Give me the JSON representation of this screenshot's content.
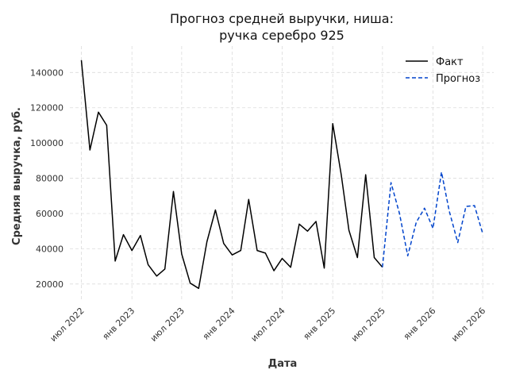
{
  "chart_data": {
    "type": "line",
    "title": [
      "Прогноз средней выручки, ниша:",
      "ручка серебро 925"
    ],
    "xlabel": "Дата",
    "ylabel": "Средняя выручка, руб.",
    "ylim": [
      10000,
      155000
    ],
    "yticks": [
      20000,
      40000,
      60000,
      80000,
      100000,
      120000,
      140000
    ],
    "x_range": [
      "2022-05-20",
      "2026-08-10"
    ],
    "xticks": [
      {
        "date": "2022-07-01",
        "label": "июл 2022"
      },
      {
        "date": "2023-01-01",
        "label": "янв 2023"
      },
      {
        "date": "2023-07-01",
        "label": "июл 2023"
      },
      {
        "date": "2024-01-01",
        "label": "янв 2024"
      },
      {
        "date": "2024-07-01",
        "label": "июл 2024"
      },
      {
        "date": "2025-01-01",
        "label": "янв 2025"
      },
      {
        "date": "2025-07-01",
        "label": "июл 2025"
      },
      {
        "date": "2026-01-01",
        "label": "янв 2026"
      },
      {
        "date": "2026-07-01",
        "label": "июл 2026"
      }
    ],
    "grid": true,
    "legend_position": "top-right",
    "series": [
      {
        "name": "Факт",
        "color": "#000000",
        "style": "solid",
        "x": [
          "2022-07-01",
          "2022-08-01",
          "2022-09-01",
          "2022-10-01",
          "2022-11-01",
          "2022-12-01",
          "2023-01-01",
          "2023-02-01",
          "2023-03-01",
          "2023-04-01",
          "2023-05-01",
          "2023-06-01",
          "2023-07-01",
          "2023-08-01",
          "2023-09-01",
          "2023-10-01",
          "2023-11-01",
          "2023-12-01",
          "2024-01-01",
          "2024-02-01",
          "2024-03-01",
          "2024-04-01",
          "2024-05-01",
          "2024-06-01",
          "2024-07-01",
          "2024-08-01",
          "2024-09-01",
          "2024-10-01",
          "2024-11-01",
          "2024-12-01",
          "2025-01-01",
          "2025-02-01",
          "2025-03-01",
          "2025-04-01",
          "2025-05-01",
          "2025-06-01",
          "2025-07-01"
        ],
        "values": [
          147000,
          96000,
          117500,
          110000,
          33000,
          48000,
          39000,
          47500,
          31000,
          24500,
          28500,
          72500,
          37000,
          20500,
          17500,
          44000,
          62000,
          43000,
          36500,
          39000,
          68000,
          39000,
          37500,
          27500,
          34500,
          29500,
          54000,
          50000,
          55500,
          29000,
          111000,
          82000,
          50500,
          35000,
          82000,
          35000,
          29500
        ]
      },
      {
        "name": "Прогноз",
        "color": "#0044cc",
        "style": "dashed",
        "x": [
          "2025-07-01",
          "2025-08-01",
          "2025-09-01",
          "2025-10-01",
          "2025-11-01",
          "2025-12-01",
          "2026-01-01",
          "2026-02-01",
          "2026-03-01",
          "2026-04-01",
          "2026-05-01",
          "2026-06-01",
          "2026-07-01"
        ],
        "values": [
          29500,
          77500,
          60000,
          36000,
          55000,
          63000,
          51500,
          83500,
          61500,
          43500,
          64000,
          64500,
          48500
        ]
      }
    ]
  }
}
